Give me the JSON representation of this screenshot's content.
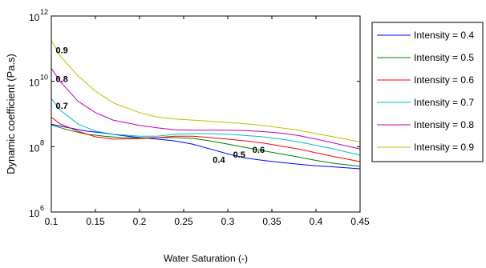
{
  "chart_data": {
    "type": "line",
    "title": "",
    "xlabel": "Water Saturation (-)",
    "ylabel": "Dynamic coefficient (Pa.s)",
    "xlim": [
      0.1,
      0.45
    ],
    "ylim": [
      1000000,
      1000000000000
    ],
    "yscale": "log",
    "grid": false,
    "legend_position": "outside-right",
    "x_ticks": [
      {
        "value": 0.1,
        "label": "0.1"
      },
      {
        "value": 0.15,
        "label": "0.15"
      },
      {
        "value": 0.2,
        "label": "0.2"
      },
      {
        "value": 0.25,
        "label": "0.25"
      },
      {
        "value": 0.3,
        "label": "0.3"
      },
      {
        "value": 0.35,
        "label": "0.35"
      },
      {
        "value": 0.4,
        "label": "0.4"
      },
      {
        "value": 0.45,
        "label": "0.45"
      }
    ],
    "y_ticks": [
      {
        "value": 1000000,
        "base": "10",
        "exp": "6"
      },
      {
        "value": 100000000,
        "base": "10",
        "exp": "8"
      },
      {
        "value": 10000000000,
        "base": "10",
        "exp": "10"
      },
      {
        "value": 1000000000000,
        "base": "10",
        "exp": "12"
      }
    ],
    "series": [
      {
        "name": "Intensity = 0.4",
        "color": "#0000ff",
        "x": [
          0.1,
          0.12,
          0.14,
          0.16,
          0.18,
          0.2,
          0.22,
          0.24,
          0.26,
          0.28,
          0.3,
          0.32,
          0.34,
          0.36,
          0.38,
          0.4,
          0.42,
          0.45
        ],
        "y": [
          490000000,
          380000000,
          300000000,
          260000000,
          220000000,
          190000000,
          170000000,
          150000000,
          120000000,
          85000000,
          60000000,
          45000000,
          38000000,
          33000000,
          29000000,
          26000000,
          24000000,
          21000000
        ]
      },
      {
        "name": "Intensity = 0.5",
        "color": "#008000",
        "x": [
          0.1,
          0.12,
          0.14,
          0.16,
          0.18,
          0.2,
          0.22,
          0.24,
          0.26,
          0.28,
          0.3,
          0.32,
          0.34,
          0.36,
          0.38,
          0.4,
          0.42,
          0.45
        ],
        "y": [
          460000000,
          320000000,
          240000000,
          210000000,
          190000000,
          185000000,
          190000000,
          190000000,
          180000000,
          150000000,
          120000000,
          95000000,
          75000000,
          60000000,
          48000000,
          38000000,
          31000000,
          25000000
        ]
      },
      {
        "name": "Intensity = 0.6",
        "color": "#ff0000",
        "x": [
          0.1,
          0.11,
          0.13,
          0.15,
          0.17,
          0.2,
          0.22,
          0.24,
          0.26,
          0.28,
          0.3,
          0.32,
          0.34,
          0.36,
          0.38,
          0.4,
          0.42,
          0.45
        ],
        "y": [
          800000000,
          500000000,
          300000000,
          200000000,
          170000000,
          175000000,
          190000000,
          210000000,
          210000000,
          190000000,
          170000000,
          150000000,
          130000000,
          105000000,
          85000000,
          65000000,
          50000000,
          35000000
        ]
      },
      {
        "name": "Intensity = 0.7",
        "color": "#00bfbf",
        "x": [
          0.1,
          0.11,
          0.13,
          0.15,
          0.17,
          0.2,
          0.22,
          0.24,
          0.26,
          0.28,
          0.3,
          0.32,
          0.34,
          0.36,
          0.38,
          0.4,
          0.42,
          0.45
        ],
        "y": [
          3000000000,
          1300000000,
          500000000,
          300000000,
          240000000,
          210000000,
          210000000,
          240000000,
          250000000,
          250000000,
          240000000,
          220000000,
          200000000,
          170000000,
          140000000,
          110000000,
          85000000,
          55000000
        ]
      },
      {
        "name": "Intensity = 0.8",
        "color": "#bf00bf",
        "x": [
          0.1,
          0.11,
          0.13,
          0.15,
          0.17,
          0.2,
          0.22,
          0.24,
          0.26,
          0.28,
          0.3,
          0.32,
          0.34,
          0.36,
          0.38,
          0.4,
          0.42,
          0.45
        ],
        "y": [
          25000000000,
          10000000000,
          2500000000,
          1100000000,
          650000000,
          450000000,
          380000000,
          330000000,
          320000000,
          320000000,
          320000000,
          310000000,
          290000000,
          260000000,
          220000000,
          170000000,
          130000000,
          85000000
        ]
      },
      {
        "name": "Intensity = 0.9",
        "color": "#bfbf00",
        "x": [
          0.1,
          0.11,
          0.13,
          0.15,
          0.17,
          0.2,
          0.22,
          0.24,
          0.26,
          0.28,
          0.3,
          0.32,
          0.34,
          0.36,
          0.38,
          0.4,
          0.42,
          0.45
        ],
        "y": [
          180000000000,
          60000000000,
          15000000000,
          5000000000,
          2200000000,
          1100000000,
          800000000,
          700000000,
          650000000,
          600000000,
          550000000,
          500000000,
          450000000,
          380000000,
          320000000,
          250000000,
          200000000,
          140000000
        ]
      }
    ],
    "annotations": [
      {
        "text": "0.9",
        "x": 0.105,
        "y": 90000000000
      },
      {
        "text": "0.8",
        "x": 0.105,
        "y": 12000000000
      },
      {
        "text": "0.7",
        "x": 0.105,
        "y": 1800000000
      },
      {
        "text": "0.4",
        "x": 0.283,
        "y": 40000000
      },
      {
        "text": "0.5",
        "x": 0.306,
        "y": 58000000
      },
      {
        "text": "0.6",
        "x": 0.328,
        "y": 82000000
      }
    ]
  }
}
